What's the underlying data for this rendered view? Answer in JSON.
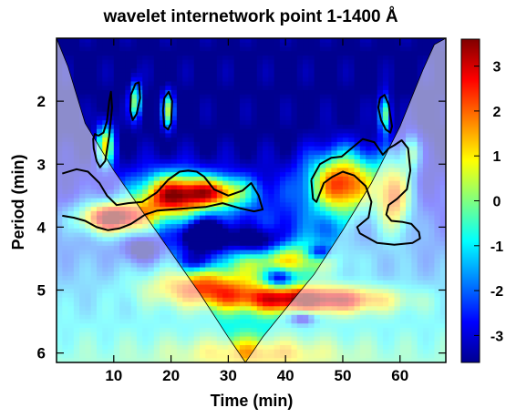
{
  "chart_data": {
    "type": "heatmap",
    "title": "wavelet internetwork point 1-1400 Å",
    "xlabel": "Time (min)",
    "ylabel": "Period (min)",
    "xlim": [
      0,
      68
    ],
    "ylim": [
      1.0,
      6.15
    ],
    "y_inverted": true,
    "x_ticks": [
      10,
      20,
      30,
      40,
      50,
      60
    ],
    "y_ticks": [
      2,
      3,
      4,
      5,
      6
    ],
    "colorbar": {
      "ticks": [
        3,
        2,
        1,
        0,
        -1,
        -2,
        -3
      ],
      "range": [
        -3.6,
        3.6
      ],
      "colormap": "jet",
      "colors": [
        "#00008f",
        "#0000ff",
        "#0080ff",
        "#00ffff",
        "#80ff80",
        "#ffff00",
        "#ff8000",
        "#ff0000",
        "#800000"
      ]
    },
    "cone_of_influence": {
      "x": [
        0,
        2,
        5,
        10,
        15,
        20,
        25,
        30,
        33,
        36,
        40,
        45,
        50,
        55,
        60,
        64,
        66,
        68
      ],
      "period": [
        1.0,
        1.45,
        2.35,
        3.1,
        3.75,
        4.4,
        5.05,
        5.75,
        6.15,
        5.75,
        5.3,
        4.75,
        4.05,
        3.3,
        2.4,
        1.5,
        1.1,
        1.0
      ]
    },
    "significance_contours": [
      {
        "x": [
          7.3,
          8.2,
          8.8,
          9.2,
          9.5,
          9.7,
          9.2,
          8.5,
          7.6,
          7.0,
          6.5,
          6.4,
          6.7,
          7.3
        ],
        "period": [
          2.55,
          2.5,
          2.32,
          2.0,
          1.85,
          2.1,
          2.55,
          2.95,
          3.05,
          2.95,
          2.75,
          2.6,
          2.52,
          2.55
        ]
      },
      {
        "x": [
          13.0,
          13.8,
          14.4,
          14.6,
          14.0,
          13.3,
          12.9,
          13.0
        ],
        "period": [
          1.9,
          1.72,
          1.7,
          1.95,
          2.2,
          2.3,
          2.15,
          1.9
        ]
      },
      {
        "x": [
          18.8,
          19.6,
          20.2,
          20.0,
          19.5,
          18.8,
          18.6,
          18.8
        ],
        "period": [
          1.95,
          1.85,
          2.0,
          2.35,
          2.45,
          2.4,
          2.15,
          1.95
        ]
      },
      {
        "x": [
          56.5,
          57.3,
          58.0,
          58.6,
          58.3,
          57.5,
          56.7,
          56.2,
          56.5
        ],
        "period": [
          1.95,
          1.9,
          2.05,
          2.4,
          2.5,
          2.45,
          2.3,
          2.1,
          1.95
        ]
      },
      {
        "x": [
          1.0,
          3.5,
          5.5,
          7.5,
          8.8,
          10.5,
          12.5,
          15.0,
          17.5,
          19.5,
          21.5,
          23.0,
          24.5,
          25.8,
          27.5,
          30.0,
          32.5,
          34.0,
          35.3,
          36.0,
          34.5,
          32.0,
          29.0,
          26.0,
          23.0,
          20.0,
          17.5,
          15.5,
          13.0,
          11.0,
          9.0,
          7.0,
          5.0,
          3.0,
          1.0
        ],
        "period": [
          3.15,
          3.08,
          3.12,
          3.3,
          3.5,
          3.65,
          3.62,
          3.6,
          3.45,
          3.25,
          3.12,
          3.1,
          3.12,
          3.2,
          3.4,
          3.5,
          3.42,
          3.3,
          3.5,
          3.72,
          3.75,
          3.7,
          3.62,
          3.68,
          3.7,
          3.72,
          3.74,
          3.8,
          3.95,
          4.02,
          4.05,
          4.0,
          3.9,
          3.85,
          3.82
        ]
      },
      {
        "x": [
          44.5,
          46.0,
          48.0,
          49.8,
          51.5,
          53.5,
          55.5,
          57.0,
          58.0,
          59.0,
          60.3,
          61.4,
          61.8,
          61.2,
          59.5,
          58.0,
          57.6,
          58.5,
          60.5,
          62.0,
          63.3,
          63.5,
          62.2,
          59.0,
          56.0,
          53.0,
          52.5,
          54.5,
          55.0,
          54.0,
          52.0,
          50.0,
          48.2,
          46.7,
          45.4,
          44.8,
          44.5
        ],
        "period": [
          3.25,
          3.0,
          2.9,
          2.88,
          2.75,
          2.6,
          2.65,
          2.85,
          2.75,
          2.7,
          2.62,
          2.75,
          3.1,
          3.4,
          3.55,
          3.65,
          3.8,
          3.9,
          3.92,
          3.95,
          4.08,
          4.18,
          4.25,
          4.28,
          4.25,
          4.1,
          4.0,
          3.85,
          3.6,
          3.35,
          3.18,
          3.12,
          3.2,
          3.3,
          3.6,
          3.55,
          3.25
        ]
      }
    ]
  }
}
